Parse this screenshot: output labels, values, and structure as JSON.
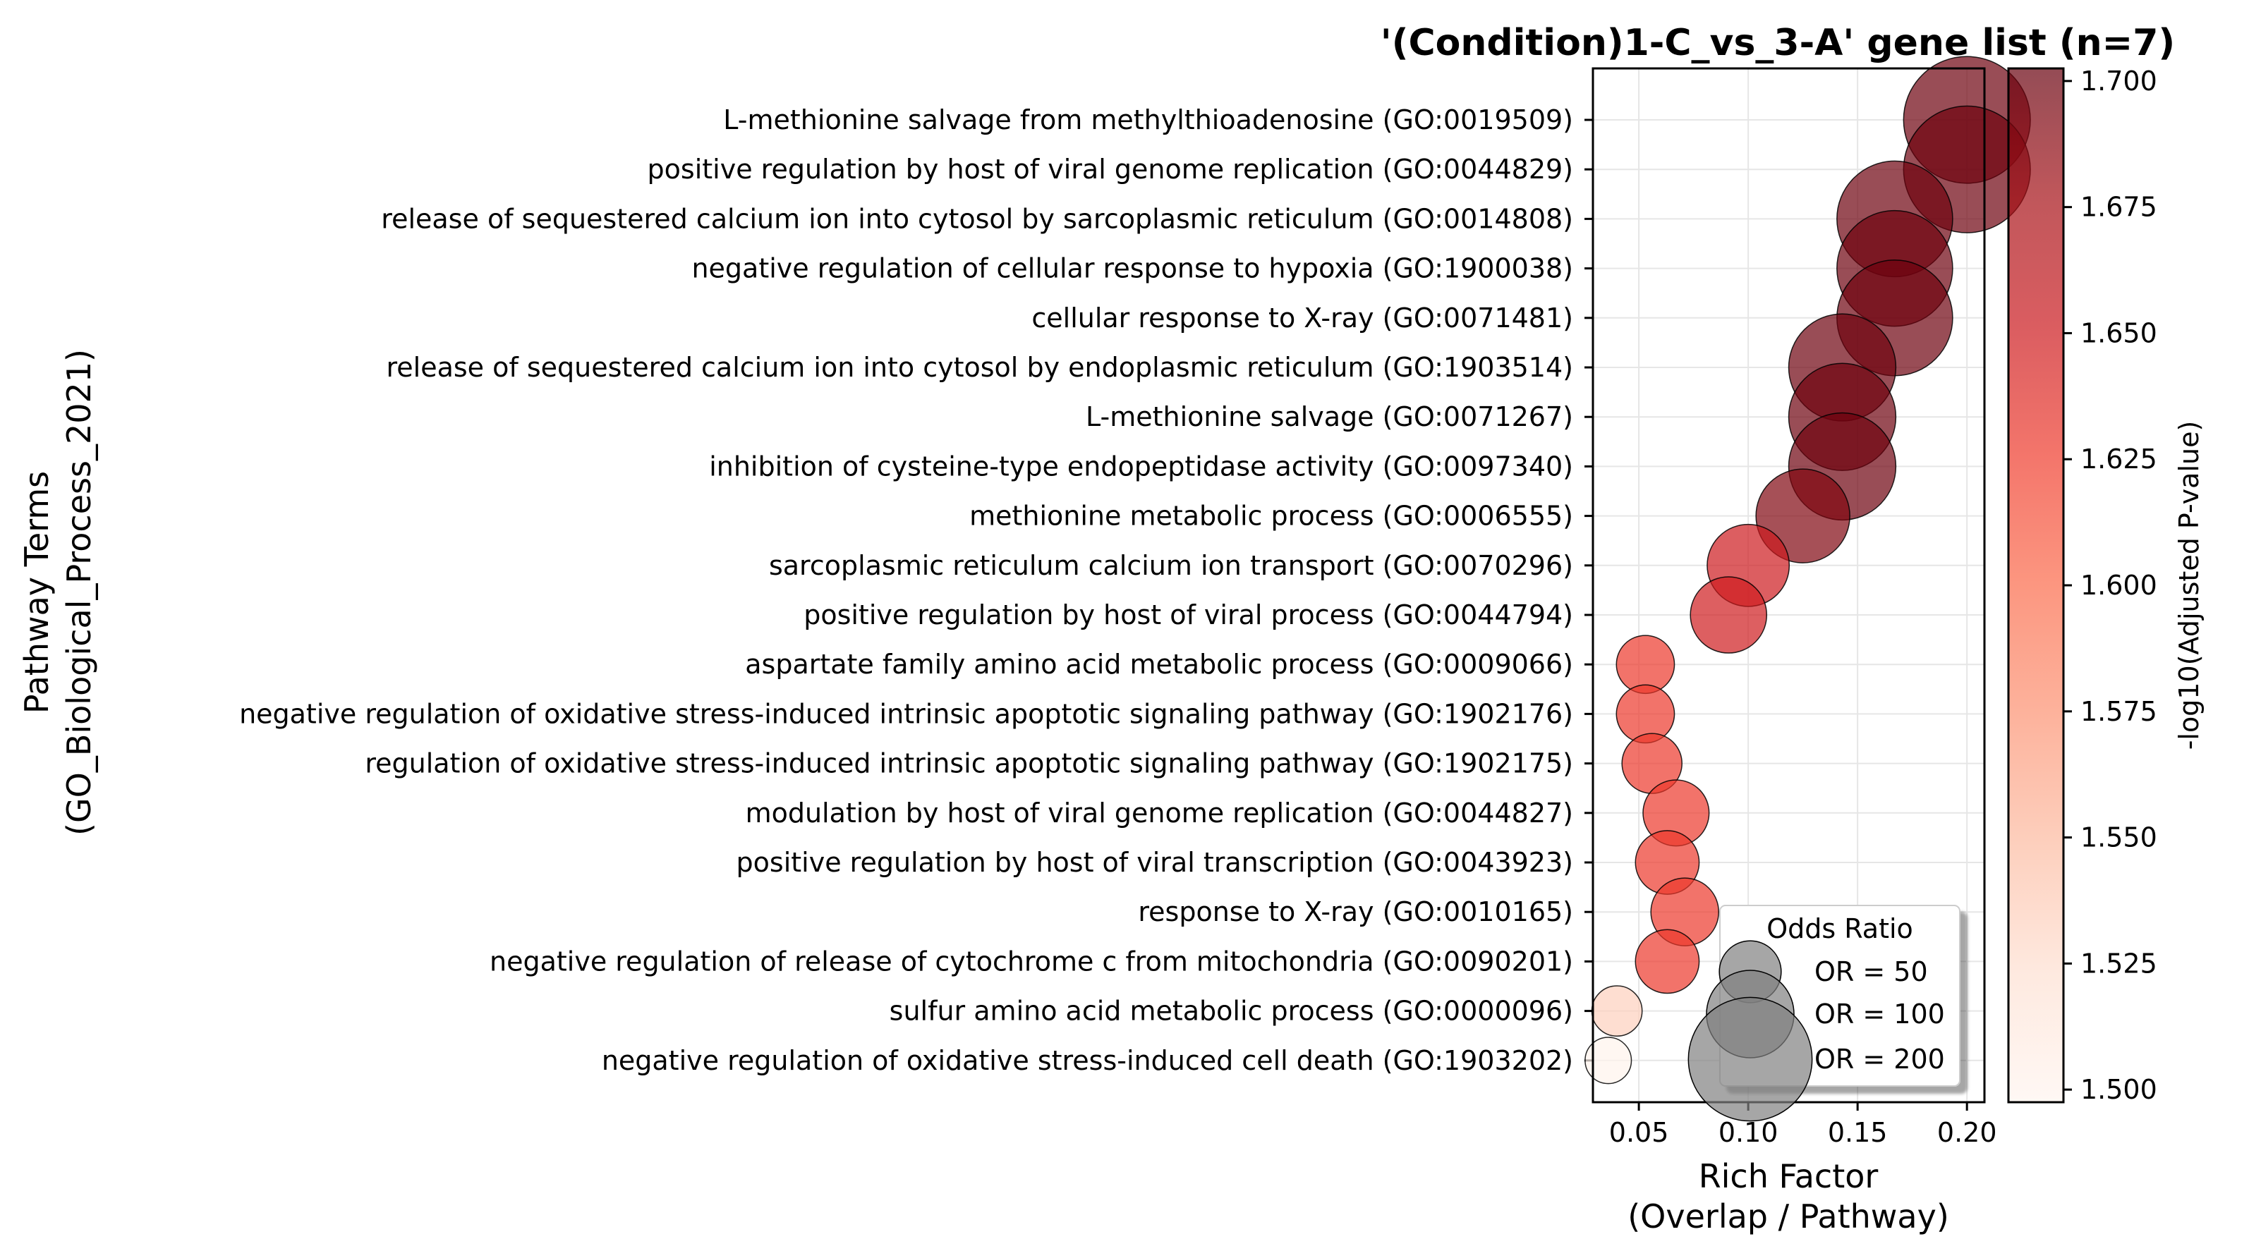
{
  "chart_data": {
    "type": "scatter",
    "title": "'(Condition)1-C_vs_3-A' gene list (n=7)",
    "xlabel": [
      "Rich Factor",
      "(Overlap / Pathway)"
    ],
    "ylabel": [
      "Pathway Terms",
      "(GO_Biological_Process_2021)"
    ],
    "xlim": [
      0.029,
      0.208
    ],
    "xticks": [
      0.05,
      0.1,
      0.15,
      0.2
    ],
    "xtick_labels": [
      "0.05",
      "0.10",
      "0.15",
      "0.20"
    ],
    "grid": true,
    "points": [
      {
        "term": "L-methionine salvage from methylthioadenosine (GO:0019509)",
        "rich_factor": 0.2,
        "neg_log10_padj": 1.7,
        "odds_ratio": 210
      },
      {
        "term": "positive regulation by host of viral genome replication (GO:0044829)",
        "rich_factor": 0.2,
        "neg_log10_padj": 1.7,
        "odds_ratio": 210
      },
      {
        "term": "release of sequestered calcium ion into cytosol by sarcoplasmic reticulum (GO:0014808)",
        "rich_factor": 0.167,
        "neg_log10_padj": 1.7,
        "odds_ratio": 175
      },
      {
        "term": "negative regulation of cellular response to hypoxia (GO:1900038)",
        "rich_factor": 0.167,
        "neg_log10_padj": 1.7,
        "odds_ratio": 175
      },
      {
        "term": "cellular response to X-ray (GO:0071481)",
        "rich_factor": 0.167,
        "neg_log10_padj": 1.7,
        "odds_ratio": 175
      },
      {
        "term": "release of sequestered calcium ion into cytosol by endoplasmic reticulum (GO:1903514)",
        "rich_factor": 0.143,
        "neg_log10_padj": 1.7,
        "odds_ratio": 150
      },
      {
        "term": "L-methionine salvage (GO:0071267)",
        "rich_factor": 0.143,
        "neg_log10_padj": 1.7,
        "odds_ratio": 150
      },
      {
        "term": "inhibition of cysteine-type endopeptidase activity (GO:0097340)",
        "rich_factor": 0.143,
        "neg_log10_padj": 1.7,
        "odds_ratio": 150
      },
      {
        "term": "methionine metabolic process (GO:0006555)",
        "rich_factor": 0.125,
        "neg_log10_padj": 1.692,
        "odds_ratio": 115
      },
      {
        "term": "sarcoplasmic reticulum calcium ion transport (GO:0070296)",
        "rich_factor": 0.1,
        "neg_log10_padj": 1.65,
        "odds_ratio": 88
      },
      {
        "term": "positive regulation by host of viral process (GO:0044794)",
        "rich_factor": 0.091,
        "neg_log10_padj": 1.649,
        "odds_ratio": 76
      },
      {
        "term": "aspartate family amino acid metabolic process (GO:0009066)",
        "rich_factor": 0.053,
        "neg_log10_padj": 1.628,
        "odds_ratio": 44
      },
      {
        "term": "negative regulation of oxidative stress-induced intrinsic apoptotic signaling pathway (GO:1902176)",
        "rich_factor": 0.053,
        "neg_log10_padj": 1.628,
        "odds_ratio": 44
      },
      {
        "term": "regulation of oxidative stress-induced intrinsic apoptotic signaling pathway (GO:1902175)",
        "rich_factor": 0.056,
        "neg_log10_padj": 1.628,
        "odds_ratio": 47
      },
      {
        "term": "modulation by host of viral genome replication (GO:0044827)",
        "rich_factor": 0.067,
        "neg_log10_padj": 1.628,
        "odds_ratio": 57
      },
      {
        "term": "positive regulation by host of viral transcription (GO:0043923)",
        "rich_factor": 0.063,
        "neg_log10_padj": 1.628,
        "odds_ratio": 53
      },
      {
        "term": "response to X-ray (GO:0010165)",
        "rich_factor": 0.071,
        "neg_log10_padj": 1.628,
        "odds_ratio": 60
      },
      {
        "term": "negative regulation of release of cytochrome c from mitochondria (GO:0090201)",
        "rich_factor": 0.063,
        "neg_log10_padj": 1.628,
        "odds_ratio": 53
      },
      {
        "term": "sulfur amino acid metabolic process (GO:0000096)",
        "rich_factor": 0.04,
        "neg_log10_padj": 1.534,
        "odds_ratio": 33
      },
      {
        "term": "negative regulation of oxidative stress-induced cell death (GO:1903202)",
        "rich_factor": 0.036,
        "neg_log10_padj": 1.5,
        "odds_ratio": 28
      }
    ],
    "colorbar": {
      "label": "-log10(Adjusted P-value)",
      "range": [
        1.4975,
        1.7025
      ],
      "ticks": [
        1.5,
        1.525,
        1.55,
        1.575,
        1.6,
        1.625,
        1.65,
        1.675,
        1.7
      ],
      "tick_labels": [
        "1.500",
        "1.525",
        "1.550",
        "1.575",
        "1.600",
        "1.625",
        "1.650",
        "1.675",
        "1.700"
      ],
      "colormap": "Reds",
      "point_alpha": 0.7
    },
    "size_legend": {
      "title": "Odds Ratio",
      "placement": "lower-right",
      "entries": [
        {
          "label": "OR = 50",
          "odds_ratio": 50
        },
        {
          "label": "OR = 100",
          "odds_ratio": 100
        },
        {
          "label": "OR = 200",
          "odds_ratio": 200
        }
      ]
    },
    "colors": {
      "edge": "#000000",
      "grid": "#e6e6e6",
      "legend_marker": "#808080"
    }
  }
}
